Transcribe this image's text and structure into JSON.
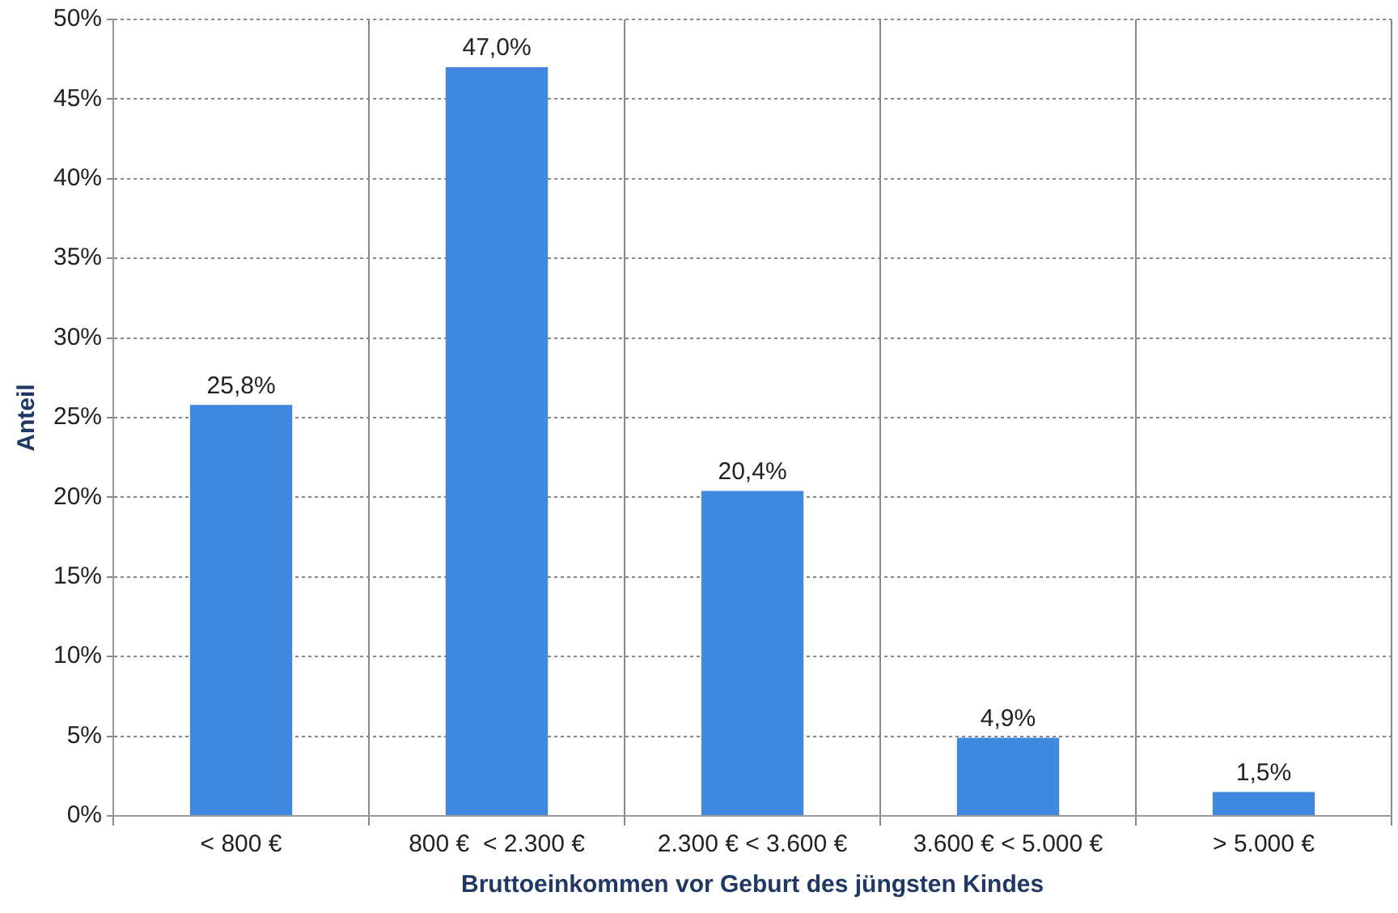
{
  "chart_data": {
    "type": "bar",
    "xlabel": "Bruttoeinkommen vor Geburt des jüngsten Kindes",
    "ylabel": "Anteil",
    "categories": [
      "< 800 €",
      "800 €  < 2.300 €",
      "2.300 € < 3.600 €",
      "3.600 € < 5.000 €",
      "> 5.000 €"
    ],
    "values": [
      25.8,
      47.0,
      20.4,
      4.9,
      1.5
    ],
    "value_labels": [
      "25,8%",
      "47,0%",
      "20,4%",
      "4,9%",
      "1,5%"
    ],
    "color": "#4189e0",
    "ylim": [
      0,
      50
    ],
    "yticks": [
      {
        "value": 0,
        "label": "0%"
      },
      {
        "value": 5,
        "label": "5%"
      },
      {
        "value": 10,
        "label": "10%"
      },
      {
        "value": 15,
        "label": "15%"
      },
      {
        "value": 20,
        "label": "20%"
      },
      {
        "value": 25,
        "label": "25%"
      },
      {
        "value": 30,
        "label": "30%"
      },
      {
        "value": 35,
        "label": "35%"
      },
      {
        "value": 40,
        "label": "40%"
      },
      {
        "value": 45,
        "label": "45%"
      },
      {
        "value": 50,
        "label": "50%"
      }
    ],
    "grid": true,
    "legend": false
  }
}
